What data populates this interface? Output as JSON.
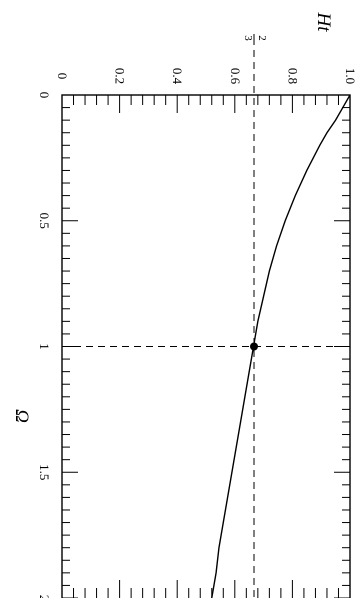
{
  "chart_data": {
    "type": "line",
    "orientation": "rotated 90 degrees clockwise (x axis runs top to bottom, y axis runs right to left)",
    "xlabel": "Ω",
    "ylabel": "Ht",
    "xlim": [
      0,
      2
    ],
    "ylim": [
      0,
      1.0
    ],
    "x_ticks": [
      "0",
      "0.5",
      "1",
      "1.5",
      "2"
    ],
    "y_ticks": [
      "0",
      "0.2",
      "0.4",
      "0.6",
      "0.8",
      "1.0"
    ],
    "y_marker_label": {
      "numerator": "2",
      "denominator": "3",
      "value": 0.6667
    },
    "series": [
      {
        "x": [
          0,
          0.05,
          0.1,
          0.15,
          0.2,
          0.3,
          0.4,
          0.5,
          0.6,
          0.7,
          0.8,
          0.9,
          1.0,
          1.1,
          1.2,
          1.3,
          1.4,
          1.5,
          1.6,
          1.7,
          1.8,
          1.9,
          2.0
        ],
        "y": [
          1.0,
          0.975,
          0.95,
          0.92,
          0.895,
          0.85,
          0.81,
          0.775,
          0.745,
          0.72,
          0.7,
          0.68,
          0.665,
          0.65,
          0.635,
          0.62,
          0.605,
          0.59,
          0.575,
          0.56,
          0.545,
          0.535,
          0.52
        ]
      }
    ],
    "highlight_point": {
      "x": 1,
      "y": 0.6667
    },
    "reference_lines": {
      "x": 1,
      "y": 0.6667
    },
    "grid": false,
    "legend": "none"
  }
}
